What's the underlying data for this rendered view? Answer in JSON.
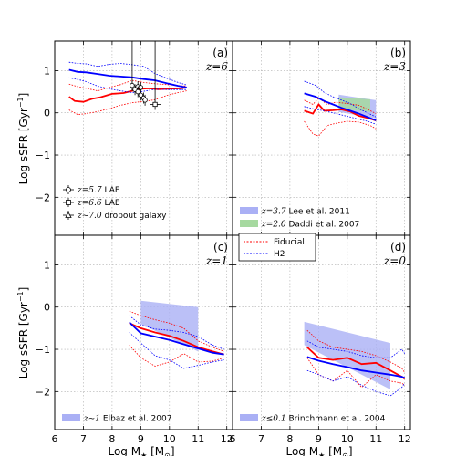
{
  "figure": {
    "xlabel": "Log M",
    "xlabel_sub": "★",
    "xlabel_unit_open": " [M",
    "xlabel_unit_sub": "⊙",
    "xlabel_unit_close": "]",
    "ylabel": "Log sSFR [Gyr",
    "ylabel_sup": "−1",
    "ylabel_close": "]",
    "x_ticks": [
      "6",
      "7",
      "8",
      "9",
      "10",
      "11",
      "12"
    ],
    "y_ticks": [
      "−2",
      "−1",
      "0",
      "1"
    ]
  },
  "model_legend": {
    "fiducial_label": "Fiducial",
    "h2_label": "H2"
  },
  "colors": {
    "fiducial": "#ff0000",
    "h2": "#0000ff",
    "blue_shade": "#aab0f5",
    "green_shade": "#a6d9a0",
    "grid": "#b0b0b0"
  },
  "chart_data": [
    {
      "type": "line",
      "panel": "(a)",
      "z_label": "z=6",
      "xlim": [
        6,
        12.2
      ],
      "ylim": [
        -2.9,
        1.7
      ],
      "series": [
        {
          "name": "Fiducial",
          "style": "solid",
          "color": "#ff0000",
          "x": [
            6.5,
            6.7,
            7.0,
            7.3,
            7.6,
            8.0,
            8.4,
            8.7,
            9.0,
            9.3,
            9.6,
            10.0,
            10.4,
            10.6
          ],
          "y": [
            0.38,
            0.28,
            0.26,
            0.33,
            0.37,
            0.45,
            0.47,
            0.52,
            0.57,
            0.58,
            0.56,
            0.57,
            0.58,
            0.6
          ]
        },
        {
          "name": "Fiducial",
          "style": "dotted",
          "color": "#ff0000",
          "x": [
            6.5,
            6.8,
            7.1,
            7.5,
            7.9,
            8.3,
            8.7,
            9.1,
            9.5,
            9.9,
            10.3,
            10.6
          ],
          "y": [
            0.68,
            0.62,
            0.58,
            0.52,
            0.6,
            0.67,
            0.77,
            0.72,
            0.69,
            0.67,
            0.64,
            0.64
          ]
        },
        {
          "name": "Fiducial",
          "style": "dotted",
          "color": "#ff0000",
          "x": [
            6.5,
            6.8,
            7.1,
            7.5,
            7.9,
            8.3,
            8.7,
            9.1,
            9.5,
            9.9,
            10.3,
            10.6
          ],
          "y": [
            0.07,
            -0.04,
            -0.02,
            0.03,
            0.1,
            0.18,
            0.24,
            0.27,
            0.31,
            0.41,
            0.48,
            0.52
          ]
        },
        {
          "name": "H2",
          "style": "solid",
          "color": "#0000ff",
          "x": [
            6.5,
            6.8,
            7.1,
            7.5,
            7.9,
            8.3,
            8.7,
            9.1,
            9.5,
            9.9,
            10.3,
            10.6
          ],
          "y": [
            1.02,
            0.97,
            0.96,
            0.92,
            0.88,
            0.86,
            0.84,
            0.8,
            0.77,
            0.7,
            0.64,
            0.6
          ]
        },
        {
          "name": "H2",
          "style": "dotted",
          "color": "#0000ff",
          "x": [
            6.5,
            6.8,
            7.1,
            7.5,
            7.9,
            8.3,
            8.7,
            9.1,
            9.5,
            9.9,
            10.3,
            10.6
          ],
          "y": [
            1.2,
            1.17,
            1.16,
            1.1,
            1.15,
            1.17,
            1.14,
            1.1,
            0.93,
            0.82,
            0.72,
            0.66
          ]
        },
        {
          "name": "H2",
          "style": "dotted",
          "color": "#0000ff",
          "x": [
            6.5,
            6.8,
            7.1,
            7.5,
            7.9,
            8.3,
            8.7,
            9.1,
            9.5,
            9.9,
            10.3,
            10.6
          ],
          "y": [
            0.83,
            0.79,
            0.74,
            0.63,
            0.57,
            0.52,
            0.48,
            0.51,
            0.56,
            0.55,
            0.55,
            0.55
          ]
        }
      ],
      "observations": [
        {
          "x": [
            8.7,
            8.8,
            8.9,
            9.0
          ],
          "y": [
            0.65,
            0.55,
            0.62,
            0.6
          ]
        },
        {
          "x": [
            8.9,
            9.0,
            9.1,
            9.15
          ],
          "y": [
            0.5,
            0.42,
            0.35,
            0.3
          ]
        },
        {
          "x": [
            9.5
          ],
          "y": [
            0.2
          ]
        }
      ],
      "legend": [
        {
          "marker": "circle",
          "math": "z=5.7",
          "text": " LAE"
        },
        {
          "marker": "square",
          "math": "z=6.6",
          "text": " LAE"
        },
        {
          "marker": "triangle",
          "math": "z~7.0",
          "text": " dropout galaxy"
        }
      ]
    },
    {
      "type": "line",
      "panel": "(b)",
      "z_label": "z=3",
      "xlim": [
        6,
        12.2
      ],
      "ylim": [
        -2.9,
        1.7
      ],
      "series": [
        {
          "name": "Fiducial",
          "style": "solid",
          "color": "#ff0000",
          "x": [
            8.5,
            8.8,
            9.0,
            9.2,
            9.5,
            9.8,
            10.1,
            10.4,
            10.7,
            11.0
          ],
          "y": [
            0.05,
            -0.02,
            0.2,
            0.05,
            0.06,
            0.08,
            0.03,
            -0.07,
            -0.12,
            -0.18
          ]
        },
        {
          "name": "Fiducial",
          "style": "dotted",
          "color": "#ff0000",
          "x": [
            8.5,
            8.8,
            9.0,
            9.3,
            9.6,
            10.0,
            10.4,
            10.8,
            11.0
          ],
          "y": [
            0.3,
            0.2,
            0.35,
            0.2,
            0.25,
            0.22,
            0.18,
            0.05,
            -0.02
          ]
        },
        {
          "name": "Fiducial",
          "style": "dotted",
          "color": "#ff0000",
          "x": [
            8.5,
            8.8,
            9.0,
            9.3,
            9.6,
            10.0,
            10.4,
            10.8,
            11.0
          ],
          "y": [
            -0.2,
            -0.5,
            -0.55,
            -0.3,
            -0.25,
            -0.2,
            -0.22,
            -0.3,
            -0.38
          ]
        },
        {
          "name": "H2",
          "style": "solid",
          "color": "#0000ff",
          "x": [
            8.5,
            8.9,
            9.2,
            9.5,
            9.8,
            10.1,
            10.4,
            10.7,
            11.0
          ],
          "y": [
            0.46,
            0.38,
            0.28,
            0.2,
            0.12,
            0.05,
            -0.02,
            -0.1,
            -0.18
          ]
        },
        {
          "name": "H2",
          "style": "dotted",
          "color": "#0000ff",
          "x": [
            8.5,
            8.9,
            9.2,
            9.5,
            9.8,
            10.1,
            10.4,
            10.7,
            11.0
          ],
          "y": [
            0.75,
            0.65,
            0.48,
            0.38,
            0.3,
            0.22,
            0.1,
            0.0,
            -0.1
          ]
        },
        {
          "name": "H2",
          "style": "dotted",
          "color": "#0000ff",
          "x": [
            8.5,
            8.9,
            9.2,
            9.5,
            9.8,
            10.1,
            10.4,
            10.7,
            11.0
          ],
          "y": [
            0.15,
            0.08,
            0.05,
            0.0,
            -0.05,
            -0.1,
            -0.15,
            -0.2,
            -0.27
          ]
        }
      ],
      "bands": [
        {
          "kind": "lee",
          "x": [
            9.7,
            11.0
          ],
          "ylow": [
            0.02,
            -0.13
          ],
          "yhigh": [
            0.43,
            0.3
          ]
        },
        {
          "kind": "daddi",
          "x": [
            9.7,
            10.8
          ],
          "ylow": [
            0.1,
            0.02
          ],
          "yhigh": [
            0.37,
            0.32
          ]
        }
      ],
      "legend": [
        {
          "color": "blue_shade",
          "math": "z=3.7",
          "text": " Lee et al. 2011"
        },
        {
          "color": "green_shade",
          "math": "z=2.0",
          "text": " Daddi et al. 2007"
        }
      ]
    },
    {
      "type": "line",
      "panel": "(c)",
      "z_label": "z=1",
      "xlim": [
        6,
        12.2
      ],
      "ylim": [
        -2.9,
        1.7
      ],
      "series": [
        {
          "name": "Fiducial",
          "style": "solid",
          "color": "#ff0000",
          "x": [
            8.6,
            9.0,
            9.5,
            10.0,
            10.5,
            11.0,
            11.5,
            11.9
          ],
          "y": [
            -0.38,
            -0.5,
            -0.6,
            -0.68,
            -0.8,
            -0.95,
            -1.05,
            -1.12
          ]
        },
        {
          "name": "Fiducial",
          "style": "dotted",
          "color": "#ff0000",
          "x": [
            8.6,
            9.0,
            9.5,
            10.0,
            10.5,
            11.0,
            11.5,
            11.9
          ],
          "y": [
            -0.1,
            -0.2,
            -0.3,
            -0.38,
            -0.5,
            -0.8,
            -0.95,
            -1.05
          ]
        },
        {
          "name": "Fiducial",
          "style": "dotted",
          "color": "#ff0000",
          "x": [
            8.6,
            9.0,
            9.5,
            10.0,
            10.5,
            11.0,
            11.5,
            11.9
          ],
          "y": [
            -0.9,
            -1.2,
            -1.4,
            -1.3,
            -1.1,
            -1.3,
            -1.28,
            -1.2
          ]
        },
        {
          "name": "H2",
          "style": "solid",
          "color": "#0000ff",
          "x": [
            8.6,
            9.0,
            9.5,
            10.0,
            10.5,
            11.0,
            11.5,
            11.9
          ],
          "y": [
            -0.36,
            -0.62,
            -0.7,
            -0.78,
            -0.88,
            -0.98,
            -1.08,
            -1.12
          ]
        },
        {
          "name": "H2",
          "style": "dotted",
          "color": "#0000ff",
          "x": [
            8.6,
            9.0,
            9.5,
            10.0,
            10.5,
            11.0,
            11.5,
            11.9
          ],
          "y": [
            -0.2,
            -0.42,
            -0.52,
            -0.55,
            -0.6,
            -0.7,
            -0.9,
            -1.0
          ]
        },
        {
          "name": "H2",
          "style": "dotted",
          "color": "#0000ff",
          "x": [
            8.6,
            9.0,
            9.5,
            10.0,
            10.5,
            11.0,
            11.5,
            11.9
          ],
          "y": [
            -0.6,
            -0.85,
            -1.15,
            -1.25,
            -1.45,
            -1.38,
            -1.3,
            -1.25
          ]
        }
      ],
      "bands": [
        {
          "kind": "elbaz",
          "x": [
            9.0,
            11.0
          ],
          "ylow": [
            -0.4,
            -1.05
          ],
          "yhigh": [
            0.15,
            0.0
          ]
        }
      ],
      "legend": [
        {
          "color": "blue_shade",
          "math": "z~1",
          "text": " Elbaz et al. 2007"
        }
      ]
    },
    {
      "type": "line",
      "panel": "(d)",
      "z_label": "z=0",
      "xlim": [
        6,
        12.2
      ],
      "ylim": [
        -2.9,
        1.7
      ],
      "series": [
        {
          "name": "Fiducial",
          "style": "solid",
          "color": "#ff0000",
          "x": [
            8.6,
            9.0,
            9.5,
            10.0,
            10.5,
            11.0,
            11.5,
            11.9,
            12.0
          ],
          "y": [
            -0.95,
            -1.2,
            -1.25,
            -1.2,
            -1.35,
            -1.32,
            -1.5,
            -1.65,
            -1.7
          ]
        },
        {
          "name": "Fiducial",
          "style": "dotted",
          "color": "#ff0000",
          "x": [
            8.6,
            9.0,
            9.5,
            10.0,
            10.5,
            11.0,
            11.5,
            11.9,
            12.0
          ],
          "y": [
            -0.55,
            -0.8,
            -0.95,
            -1.0,
            -1.05,
            -1.15,
            -1.3,
            -1.45,
            -1.55
          ]
        },
        {
          "name": "Fiducial",
          "style": "dotted",
          "color": "#ff0000",
          "x": [
            8.6,
            9.0,
            9.5,
            10.0,
            10.5,
            11.0,
            11.5,
            11.9,
            12.0
          ],
          "y": [
            -1.2,
            -1.6,
            -1.75,
            -1.5,
            -1.9,
            -1.6,
            -1.75,
            -1.8,
            -1.85
          ]
        },
        {
          "name": "H2",
          "style": "solid",
          "color": "#0000ff",
          "x": [
            8.6,
            9.0,
            9.5,
            10.0,
            10.5,
            11.0,
            11.5,
            11.9,
            12.0
          ],
          "y": [
            -1.18,
            -1.27,
            -1.35,
            -1.42,
            -1.5,
            -1.55,
            -1.6,
            -1.65,
            -1.68
          ]
        },
        {
          "name": "H2",
          "style": "dotted",
          "color": "#0000ff",
          "x": [
            8.6,
            9.0,
            9.5,
            10.0,
            10.5,
            11.0,
            11.5,
            11.9,
            12.0
          ],
          "y": [
            -0.8,
            -0.95,
            -1.0,
            -1.05,
            -1.15,
            -1.2,
            -1.2,
            -1.0,
            -1.1
          ]
        },
        {
          "name": "H2",
          "style": "dotted",
          "color": "#0000ff",
          "x": [
            8.6,
            9.0,
            9.5,
            10.0,
            10.5,
            11.0,
            11.5,
            11.9,
            12.0
          ],
          "y": [
            -1.5,
            -1.6,
            -1.75,
            -1.65,
            -1.85,
            -2.0,
            -2.1,
            -1.9,
            -1.8
          ]
        }
      ],
      "bands": [
        {
          "kind": "brinchmann",
          "x": [
            8.5,
            11.5
          ],
          "ylow": [
            -0.9,
            -1.95
          ],
          "yhigh": [
            -0.35,
            -0.85
          ]
        }
      ],
      "legend": [
        {
          "color": "blue_shade",
          "math": "z≤0.1",
          "text": " Brinchmann et al. 2004"
        }
      ]
    }
  ]
}
